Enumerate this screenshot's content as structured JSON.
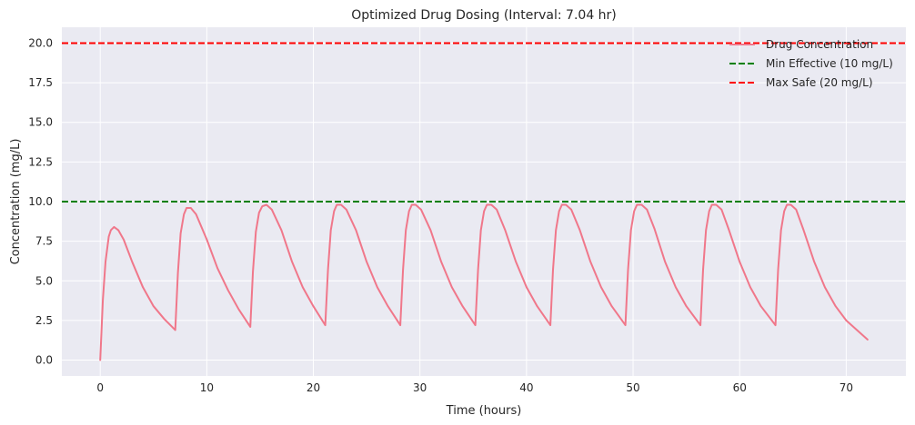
{
  "chart_data": {
    "type": "line",
    "title": "Optimized Drug Dosing (Interval: 7.04 hr)",
    "xlabel": "Time (hours)",
    "ylabel": "Concentration (mg/L)",
    "xlim": [
      -3.6,
      75.6
    ],
    "ylim": [
      -1.0,
      21.0
    ],
    "xticks": [
      0,
      10,
      20,
      30,
      40,
      50,
      60,
      70
    ],
    "yticks": [
      0.0,
      2.5,
      5.0,
      7.5,
      10.0,
      12.5,
      15.0,
      17.5,
      20.0
    ],
    "grid": true,
    "legend_placement": "top-right",
    "series": [
      {
        "name": "Drug Concentration",
        "color": "#f0778a",
        "style": "solid",
        "x": [
          0,
          0.25,
          0.5,
          0.8,
          1.0,
          1.3,
          1.7,
          2.2,
          3.0,
          4.0,
          5.0,
          6.0,
          7.04,
          7.29,
          7.55,
          7.85,
          8.1,
          8.5,
          9.0,
          10.0,
          11.0,
          12.0,
          13.0,
          14.08,
          14.33,
          14.6,
          14.9,
          15.2,
          15.6,
          16.1,
          17.0,
          18.0,
          19.0,
          20.0,
          21.12,
          21.37,
          21.64,
          21.94,
          22.2,
          22.6,
          23.1,
          24.0,
          25.0,
          26.0,
          27.0,
          28.16,
          28.41,
          28.68,
          28.98,
          29.24,
          29.6,
          30.1,
          31.0,
          32.0,
          33.0,
          34.0,
          35.2,
          35.45,
          35.72,
          36.02,
          36.28,
          36.7,
          37.2,
          38.0,
          39.0,
          40.0,
          41.0,
          42.24,
          42.49,
          42.76,
          43.06,
          43.32,
          43.7,
          44.2,
          45.0,
          46.0,
          47.0,
          48.0,
          49.28,
          49.53,
          49.8,
          50.1,
          50.36,
          50.8,
          51.3,
          52.0,
          53.0,
          54.0,
          55.0,
          56.32,
          56.57,
          56.84,
          57.14,
          57.4,
          57.8,
          58.3,
          59.0,
          60.0,
          61.0,
          62.0,
          63.36,
          63.61,
          63.88,
          64.18,
          64.44,
          64.8,
          65.3,
          66.0,
          67.0,
          68.0,
          69.0,
          70.0,
          71.0,
          72.0
        ],
        "values": [
          0.0,
          3.8,
          6.2,
          7.8,
          8.2,
          8.4,
          8.2,
          7.6,
          6.2,
          4.6,
          3.4,
          2.6,
          1.9,
          5.5,
          8.0,
          9.2,
          9.6,
          9.6,
          9.2,
          7.6,
          5.8,
          4.4,
          3.2,
          2.1,
          5.6,
          8.1,
          9.3,
          9.7,
          9.8,
          9.5,
          8.2,
          6.2,
          4.6,
          3.4,
          2.2,
          5.7,
          8.2,
          9.4,
          9.8,
          9.8,
          9.5,
          8.2,
          6.2,
          4.6,
          3.4,
          2.2,
          5.7,
          8.2,
          9.4,
          9.8,
          9.8,
          9.5,
          8.2,
          6.2,
          4.6,
          3.4,
          2.2,
          5.7,
          8.2,
          9.4,
          9.8,
          9.8,
          9.5,
          8.2,
          6.2,
          4.6,
          3.4,
          2.2,
          5.7,
          8.2,
          9.4,
          9.8,
          9.8,
          9.5,
          8.2,
          6.2,
          4.6,
          3.4,
          2.2,
          5.7,
          8.2,
          9.4,
          9.8,
          9.8,
          9.5,
          8.3,
          6.2,
          4.6,
          3.4,
          2.2,
          5.7,
          8.2,
          9.4,
          9.8,
          9.8,
          9.5,
          8.2,
          6.2,
          4.6,
          3.4,
          2.2,
          5.7,
          8.2,
          9.4,
          9.8,
          9.8,
          9.5,
          8.2,
          6.2,
          4.6,
          3.4,
          2.5,
          1.9,
          1.3
        ]
      },
      {
        "name": "Min Effective (10 mg/L)",
        "color": "#008000",
        "style": "dashed",
        "hline": 10.0
      },
      {
        "name": "Max Safe (20 mg/L)",
        "color": "#ff0000",
        "style": "dashed",
        "hline": 20.0
      }
    ]
  },
  "colors": {
    "plot_background": "#eaeaf2",
    "grid": "#ffffff",
    "text": "#262626"
  }
}
